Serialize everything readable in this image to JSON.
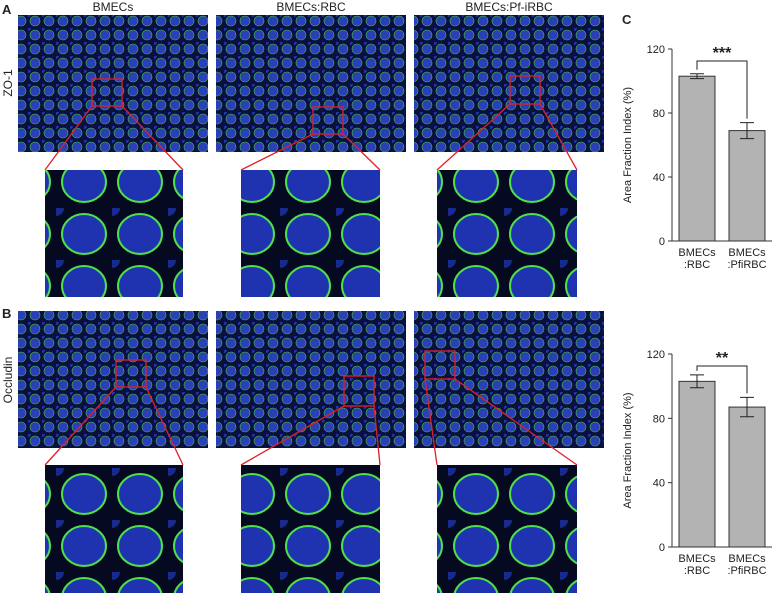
{
  "panels": {
    "a": "A",
    "b": "B",
    "c": "C"
  },
  "columns": [
    "BMECs",
    "BMECs:RBC",
    "BMECs:Pf-iRBC"
  ],
  "rows": [
    "ZO-1",
    "Occludin"
  ],
  "chart_data": [
    {
      "type": "bar",
      "ylabel": "Area Fraction Index (%)",
      "categories": [
        "BMECs\n:RBC",
        "BMECs\n:PfiRBC"
      ],
      "values": [
        103,
        69
      ],
      "errors": [
        1.5,
        5
      ],
      "color": "#b3b3b3",
      "annotation": "***",
      "ylim": [
        0,
        120
      ],
      "yticks": [
        0,
        40,
        80,
        120
      ]
    },
    {
      "type": "bar",
      "ylabel": "Area Fraction Index (%)",
      "categories": [
        "BMECs\n:RBC",
        "BMECs\n:PfiRBC"
      ],
      "values": [
        103,
        87
      ],
      "errors": [
        4,
        6
      ],
      "color": "#b3b3b3",
      "annotation": "**",
      "ylim": [
        0,
        120
      ],
      "yticks": [
        0,
        40,
        80,
        120
      ]
    }
  ]
}
